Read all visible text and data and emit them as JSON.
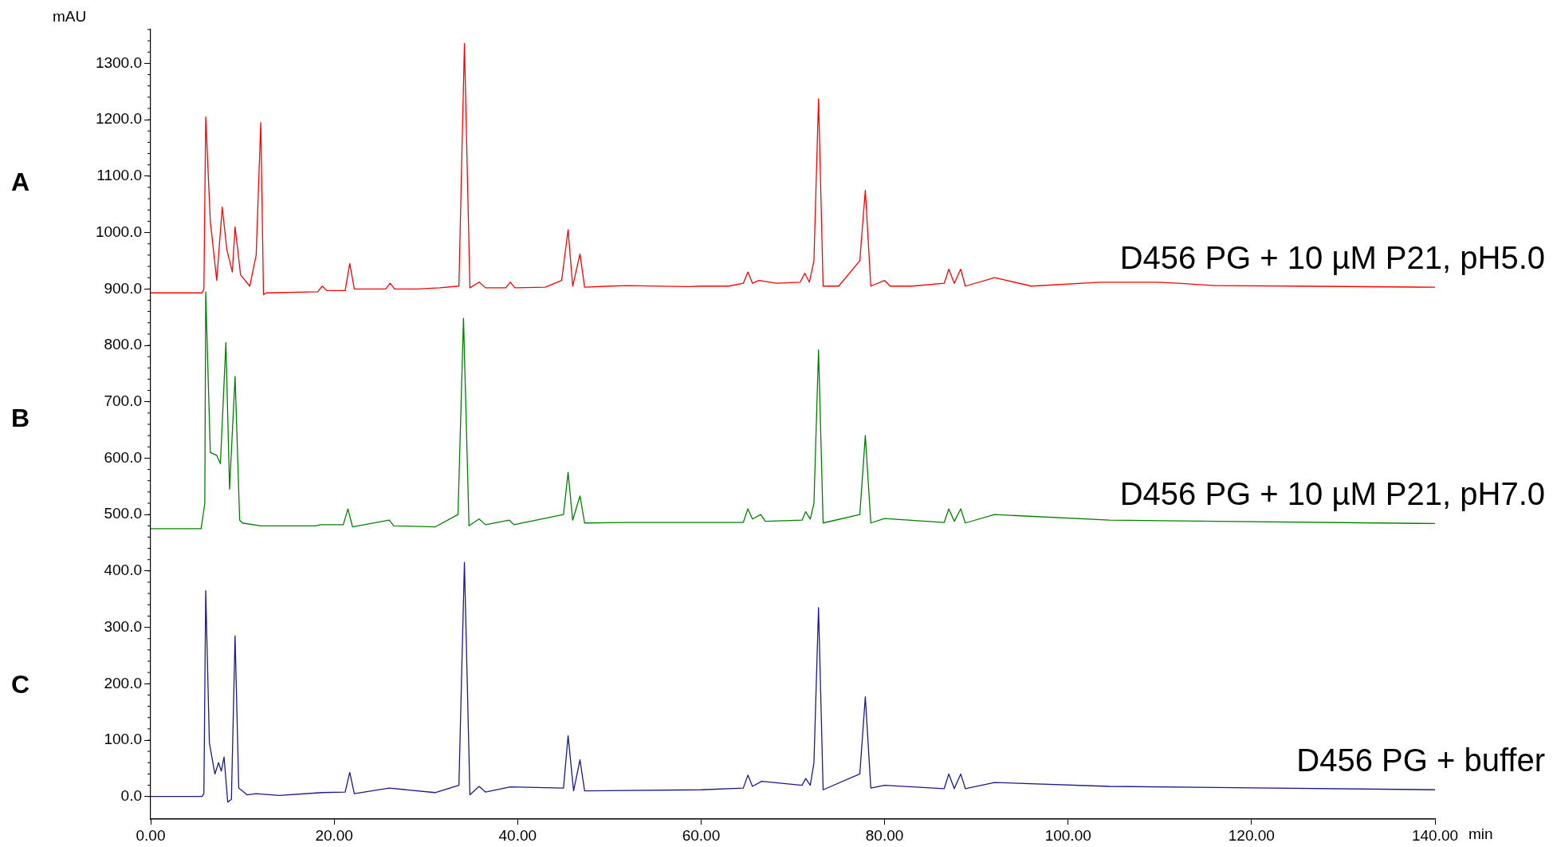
{
  "chart_data": {
    "type": "line",
    "xlabel": "min",
    "ylabel": "mAU",
    "xlim": [
      0,
      140
    ],
    "ylim": [
      -40,
      1360
    ],
    "xticks": [
      {
        "value": 0,
        "label": "0.00"
      },
      {
        "value": 20,
        "label": "20.00"
      },
      {
        "value": 40,
        "label": "40.00"
      },
      {
        "value": 60,
        "label": "60.00"
      },
      {
        "value": 80,
        "label": "80.00"
      },
      {
        "value": 100,
        "label": "100.00"
      },
      {
        "value": 120,
        "label": "120.00"
      },
      {
        "value": 140,
        "label": "140.00"
      }
    ],
    "yticks": [
      {
        "value": 0,
        "label": "0.0"
      },
      {
        "value": 100,
        "label": "100.0"
      },
      {
        "value": 200,
        "label": "200.0"
      },
      {
        "value": 300,
        "label": "300.0"
      },
      {
        "value": 400,
        "label": "400.0"
      },
      {
        "value": 500,
        "label": "500.0"
      },
      {
        "value": 600,
        "label": "600.0"
      },
      {
        "value": 700,
        "label": "700.0"
      },
      {
        "value": 800,
        "label": "800.0"
      },
      {
        "value": 900,
        "label": "900.0"
      },
      {
        "value": 1000,
        "label": "1000.0"
      },
      {
        "value": 1100,
        "label": "1100.0"
      },
      {
        "value": 1200,
        "label": "1200.0"
      },
      {
        "value": 1300,
        "label": "1300.0"
      }
    ],
    "grid": false,
    "legend": false,
    "marker": "none",
    "line_style": "solid",
    "annotations": [
      "A",
      "B",
      "C"
    ],
    "series": [
      {
        "name": "D456 PG + 10 µM P21, pH5.0",
        "color": "#ff0000",
        "x": [
          0,
          5.6,
          5.8,
          6.0,
          6.5,
          7.2,
          7.8,
          8.3,
          8.9,
          9.2,
          9.8,
          10.8,
          11.5,
          12.0,
          12.3,
          12.6,
          18.2,
          18.7,
          19.2,
          21.2,
          21.7,
          22.2,
          25.6,
          26.1,
          26.6,
          29,
          31.5,
          33.6,
          34.2,
          34.8,
          35.8,
          36.5,
          38.7,
          39.2,
          39.7,
          43,
          44.8,
          45.5,
          46.0,
          46.8,
          47.3,
          50,
          52,
          58.5,
          60,
          63,
          64.6,
          65.1,
          65.6,
          66.3,
          68.2,
          70.8,
          71.3,
          71.8,
          72.3,
          72.8,
          73.3,
          75,
          77.3,
          77.9,
          78.5,
          80,
          80.6,
          83,
          86.5,
          87,
          87.6,
          88.3,
          88.8,
          92,
          96,
          103.5,
          104.8,
          109.7,
          112,
          116,
          125,
          140
        ],
        "values": [
          893,
          893,
          900,
          1205,
          1020,
          915,
          1045,
          970,
          930,
          1010,
          925,
          905,
          960,
          1195,
          890,
          893,
          895,
          905,
          897,
          897,
          945,
          900,
          900,
          910,
          900,
          900,
          902,
          905,
          1335,
          902,
          912,
          902,
          902,
          912,
          902,
          903,
          915,
          1005,
          905,
          962,
          903,
          905,
          906,
          904,
          905,
          905,
          910,
          930,
          910,
          915,
          910,
          912,
          928,
          912,
          950,
          1237,
          905,
          905,
          950,
          1075,
          905,
          915,
          905,
          905,
          910,
          935,
          910,
          935,
          905,
          920,
          905,
          912,
          912,
          912,
          910,
          906,
          905,
          903
        ]
      },
      {
        "name": "D456 PG + 10 µM P21, pH7.0",
        "color": "#008000",
        "x": [
          0,
          5.5,
          5.9,
          6.0,
          6.5,
          7.2,
          7.6,
          8.2,
          8.6,
          9.2,
          9.7,
          10,
          12,
          18,
          18.5,
          21,
          21.5,
          22,
          26,
          26.5,
          31,
          33.5,
          34.1,
          34.7,
          35.8,
          36.5,
          39.1,
          39.6,
          45,
          45.5,
          46,
          46.8,
          47.3,
          52,
          64.6,
          65.1,
          65.6,
          66.5,
          67,
          71,
          71.4,
          71.9,
          72.3,
          72.8,
          73.3,
          77.3,
          77.9,
          78.5,
          80,
          86.5,
          87,
          87.6,
          88.3,
          88.8,
          92,
          104.5,
          140
        ],
        "values": [
          475,
          475,
          520,
          895,
          610,
          605,
          590,
          805,
          545,
          745,
          490,
          485,
          480,
          480,
          482,
          482,
          510,
          478,
          490,
          480,
          478,
          500,
          848,
          480,
          492,
          482,
          490,
          482,
          500,
          575,
          490,
          533,
          485,
          486,
          486,
          510,
          492,
          500,
          488,
          490,
          505,
          492,
          520,
          792,
          485,
          500,
          640,
          485,
          493,
          486,
          510,
          488,
          510,
          485,
          500,
          490,
          484
        ]
      },
      {
        "name": "D456 PG + buffer",
        "color": "#1a1a8c",
        "x": [
          0,
          5.6,
          5.8,
          6.0,
          6.4,
          7.0,
          7.4,
          7.7,
          8.0,
          8.4,
          8.8,
          9.2,
          9.6,
          10.5,
          11.5,
          14,
          18.7,
          21.2,
          21.7,
          22.2,
          26,
          31,
          33.6,
          34.2,
          34.8,
          35.8,
          36.5,
          39.2,
          45,
          45.5,
          46.1,
          46.8,
          47.3,
          60,
          64.6,
          65.1,
          65.6,
          66.6,
          71,
          71.4,
          71.9,
          72.3,
          72.8,
          73.3,
          77.3,
          77.9,
          78.5,
          80,
          86.5,
          87,
          87.6,
          88.3,
          88.8,
          92,
          104.5,
          140
        ],
        "values": [
          0,
          0,
          5,
          365,
          95,
          40,
          60,
          45,
          70,
          -10,
          -5,
          285,
          15,
          3,
          5,
          2,
          7,
          8,
          43,
          5,
          15,
          7,
          20,
          415,
          3,
          18,
          8,
          17,
          15,
          108,
          10,
          65,
          10,
          12,
          15,
          38,
          18,
          27,
          20,
          32,
          20,
          60,
          335,
          12,
          40,
          177,
          15,
          20,
          14,
          40,
          14,
          40,
          14,
          25,
          18,
          12
        ]
      }
    ]
  }
}
